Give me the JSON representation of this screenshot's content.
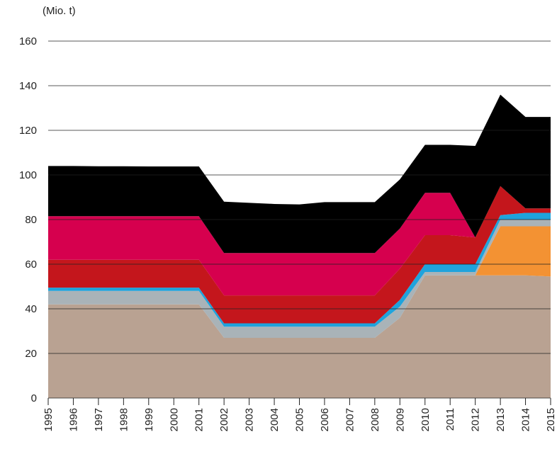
{
  "chart_data": {
    "type": "area",
    "stacked": true,
    "y_label": "(Mio. t)",
    "x": [
      1995,
      1996,
      1997,
      1998,
      1999,
      2000,
      2001,
      2002,
      2003,
      2004,
      2005,
      2006,
      2007,
      2008,
      2009,
      2010,
      2011,
      2012,
      2013,
      2014,
      2015
    ],
    "xlim": [
      1995,
      2015
    ],
    "ylim": [
      0,
      160
    ],
    "yticks": [
      0,
      20,
      40,
      60,
      80,
      100,
      120,
      140,
      160
    ],
    "grid": true,
    "series": [
      {
        "color": "#b9a292",
        "values": [
          42,
          42,
          42,
          42,
          42,
          42,
          42,
          27,
          27,
          27,
          27,
          27,
          27,
          27,
          36,
          55,
          55,
          55,
          55,
          55,
          54.5
        ]
      },
      {
        "color": "#f39233",
        "values": [
          0,
          0,
          0,
          0,
          0,
          0,
          0,
          0,
          0,
          0,
          0,
          0,
          0,
          0,
          0,
          0,
          0,
          0,
          22,
          22,
          22.5
        ]
      },
      {
        "color": "#a9b3b8",
        "values": [
          6,
          6,
          6,
          6,
          6,
          6,
          6,
          5,
          5,
          5,
          5,
          5,
          5,
          5,
          5,
          1.5,
          1.5,
          1.5,
          3,
          3,
          3
        ]
      },
      {
        "color": "#1fa3dc",
        "values": [
          1.5,
          1.5,
          1.5,
          1.5,
          1.5,
          1.5,
          1.5,
          1.5,
          1.5,
          1.5,
          1.5,
          1.5,
          1.5,
          1.5,
          3,
          3.5,
          3.5,
          3.5,
          2,
          3,
          3
        ]
      },
      {
        "color": "#c4161c",
        "values": [
          12.5,
          12.5,
          12.5,
          12.5,
          12.5,
          12.5,
          12.5,
          12.5,
          12.5,
          12.5,
          12.5,
          12.5,
          12.5,
          12.5,
          14,
          13,
          13,
          12,
          13,
          2,
          2
        ]
      },
      {
        "color": "#d6004e",
        "values": [
          19.5,
          19.5,
          19.5,
          19.5,
          19.5,
          19.5,
          19.5,
          19,
          19,
          19,
          19,
          19,
          19,
          19,
          18,
          19,
          19,
          0,
          0,
          0,
          0
        ]
      },
      {
        "color": "#000000",
        "values": [
          22.5,
          22.5,
          22.4,
          22.4,
          22.3,
          22.3,
          22.3,
          23,
          22.5,
          22,
          21.8,
          22.8,
          22.8,
          22.8,
          22,
          21.5,
          21.5,
          41,
          41,
          41,
          41
        ]
      }
    ]
  }
}
